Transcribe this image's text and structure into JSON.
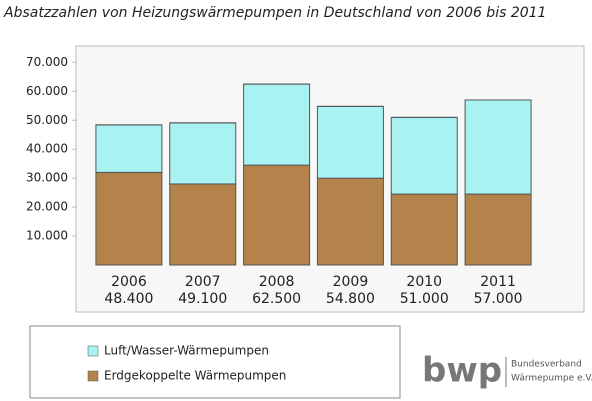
{
  "chart_data": {
    "type": "stacked_bar",
    "title": "Absatzzahlen von Heizungswärmepumpen in Deutschland von 2006 bis 2011",
    "categories": [
      "2006",
      "2007",
      "2008",
      "2009",
      "2010",
      "2011"
    ],
    "series": [
      {
        "name": "Luft/Wasser-Wärmepumpen",
        "color": "#a8f2f2",
        "values": [
          16400,
          21100,
          28000,
          24800,
          26500,
          32500
        ]
      },
      {
        "name": "Erdgekoppelte Wärmepumpen",
        "color": "#b3834b",
        "values": [
          32000,
          28000,
          34500,
          30000,
          24500,
          24500
        ]
      }
    ],
    "totals": {
      "values": [
        48400,
        49100,
        62500,
        54800,
        51000,
        57000
      ],
      "value_labels": [
        "48.400",
        "49.100",
        "62.500",
        "54.800",
        "51.000",
        "57.000"
      ]
    },
    "ylim": [
      0,
      76000
    ],
    "yticks": [
      {
        "value": 10000,
        "label": "10.000"
      },
      {
        "value": 20000,
        "label": "20.000"
      },
      {
        "value": 30000,
        "label": "30.000"
      },
      {
        "value": 40000,
        "label": "40.000"
      },
      {
        "value": 50000,
        "label": "50.000"
      },
      {
        "value": 60000,
        "label": "60.000"
      },
      {
        "value": 70000,
        "label": "70.000"
      }
    ],
    "grid": false
  },
  "branding": {
    "logo": "bwp",
    "org_line1": "Bundesverband",
    "org_line2": "Wärmepumpe e.V."
  }
}
